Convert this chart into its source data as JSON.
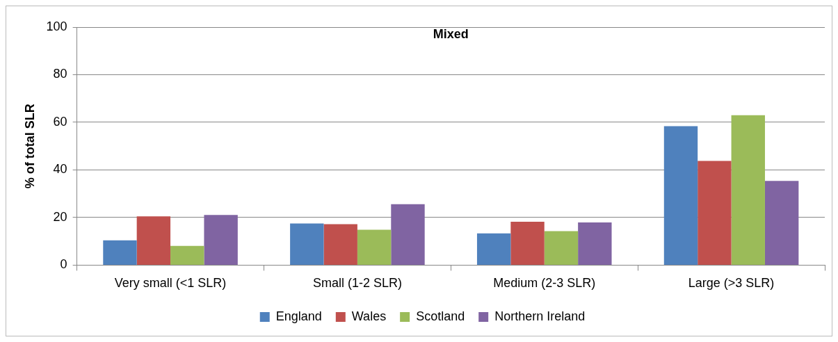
{
  "chart_data": {
    "type": "bar",
    "title": "Mixed",
    "ylabel": "% of total SLR",
    "categories": [
      "Very small (<1 SLR)",
      "Small (1-2 SLR)",
      "Medium (2-3 SLR)",
      "Large (>3 SLR)"
    ],
    "series": [
      {
        "name": "England",
        "color": "#4f81bd",
        "values": [
          10.4,
          17.5,
          13.3,
          58.4
        ]
      },
      {
        "name": "Wales",
        "color": "#c0504d",
        "values": [
          20.5,
          17.2,
          18.2,
          43.8
        ]
      },
      {
        "name": "Scotland",
        "color": "#9bbb59",
        "values": [
          8.1,
          14.9,
          14.3,
          63.0
        ]
      },
      {
        "name": "Northern Ireland",
        "color": "#8064a2",
        "values": [
          21.1,
          25.6,
          17.9,
          35.4
        ]
      }
    ],
    "ylim": [
      0,
      100
    ],
    "yticks": [
      0,
      20,
      40,
      60,
      80,
      100
    ],
    "grid": "y",
    "legend": "bottom"
  }
}
